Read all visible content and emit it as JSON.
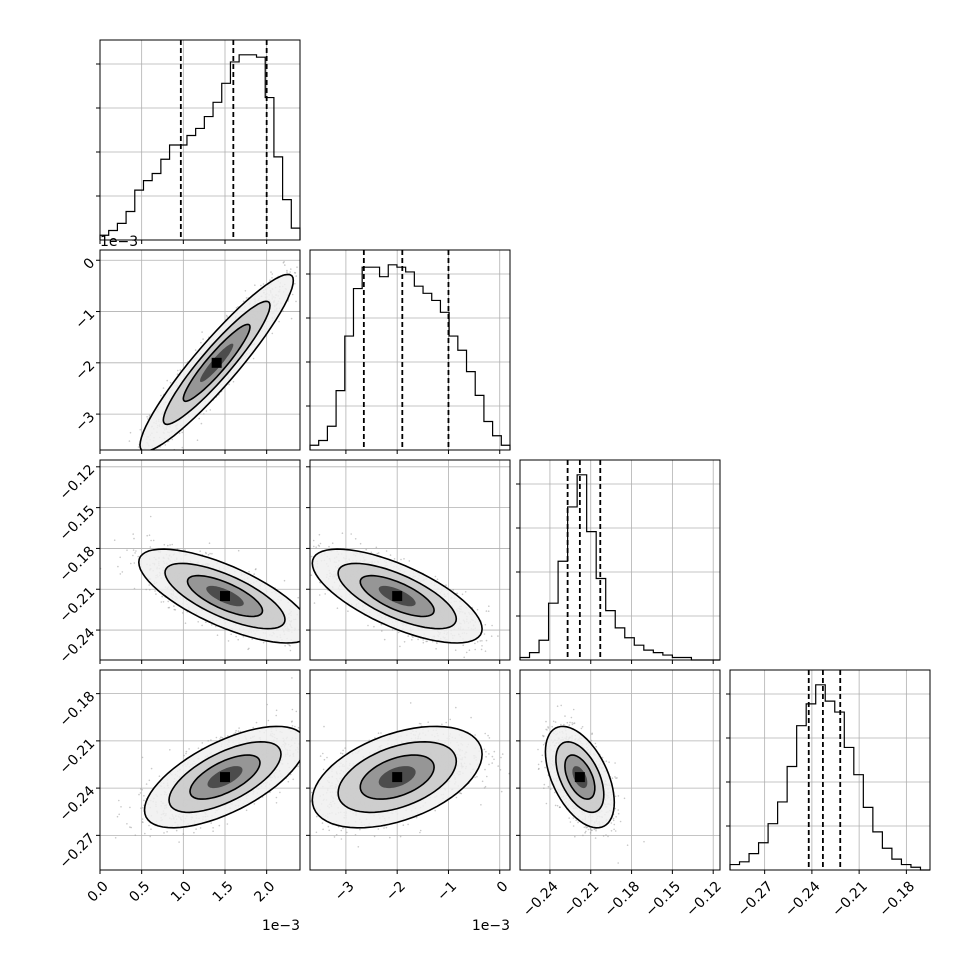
{
  "chart_data": {
    "type": "corner",
    "grid": true,
    "parameters": [
      {
        "ticks": [
          0.0,
          0.5,
          1.0,
          1.5,
          2.0
        ],
        "tick_labels": [
          "0.0",
          "0.5",
          "1.0",
          "1.5",
          "2.0"
        ],
        "offset_label": "1e−3",
        "range": [
          0.0,
          2.4
        ]
      },
      {
        "ticks": [
          -3,
          -2,
          -1,
          0
        ],
        "tick_labels": [
          "−3",
          "−2",
          "−1",
          "0"
        ],
        "offset_label": "1e−3",
        "range": [
          -3.7,
          0.2
        ]
      },
      {
        "ticks": [
          -0.24,
          -0.21,
          -0.18,
          -0.15,
          -0.12
        ],
        "tick_labels": [
          "−0.24",
          "−0.21",
          "−0.18",
          "−0.15",
          "−0.12"
        ],
        "offset_label": "",
        "range": [
          -0.262,
          -0.115
        ]
      },
      {
        "ticks": [
          -0.27,
          -0.24,
          -0.21,
          -0.18
        ],
        "tick_labels": [
          "−0.27",
          "−0.24",
          "−0.21",
          "−0.18"
        ],
        "offset_label": "",
        "range": [
          -0.292,
          -0.165
        ]
      }
    ],
    "histograms": [
      {
        "edges_range": [
          0.0,
          2.4
        ],
        "counts": [
          2,
          4,
          7,
          12,
          21,
          25,
          28,
          34,
          40,
          40,
          44,
          47,
          52,
          58,
          66,
          75,
          78,
          78,
          77,
          60,
          35,
          17,
          5
        ],
        "quantiles": [
          0.97,
          1.6,
          2.0
        ]
      },
      {
        "edges_range": [
          -3.7,
          0.2
        ],
        "counts": [
          2,
          4,
          10,
          25,
          48,
          68,
          77,
          77,
          73,
          78,
          77,
          75,
          69,
          66,
          63,
          58,
          48,
          42,
          33,
          23,
          12,
          6,
          2
        ],
        "quantiles": [
          -2.65,
          -1.9,
          -1.0
        ]
      },
      {
        "edges_range": [
          -0.262,
          -0.115
        ],
        "counts": [
          1,
          3,
          8,
          23,
          40,
          62,
          75,
          52,
          33,
          20,
          13,
          9,
          6,
          4,
          3,
          2,
          1,
          1,
          0,
          0,
          0
        ],
        "quantiles": [
          -0.227,
          -0.218,
          -0.203
        ]
      },
      {
        "edges_range": [
          -0.292,
          -0.165
        ],
        "counts": [
          2,
          3,
          6,
          10,
          17,
          25,
          38,
          53,
          61,
          68,
          62,
          58,
          45,
          35,
          23,
          14,
          8,
          4,
          2,
          1,
          0
        ],
        "quantiles": [
          -0.242,
          -0.233,
          -0.222
        ]
      }
    ],
    "pairs": [
      {
        "row": 1,
        "col": 0,
        "mean": [
          1.4,
          -2.0
        ],
        "sd": [
          0.4,
          0.75
        ],
        "rho": 0.93
      },
      {
        "row": 2,
        "col": 0,
        "mean": [
          1.5,
          -0.215
        ],
        "sd": [
          0.45,
          0.015
        ],
        "rho": -0.72
      },
      {
        "row": 2,
        "col": 1,
        "mean": [
          -2.0,
          -0.215
        ],
        "sd": [
          0.72,
          0.015
        ],
        "rho": -0.7
      },
      {
        "row": 3,
        "col": 0,
        "mean": [
          1.5,
          -0.233
        ],
        "sd": [
          0.42,
          0.014
        ],
        "rho": 0.65
      },
      {
        "row": 3,
        "col": 1,
        "mean": [
          -2.0,
          -0.233
        ],
        "sd": [
          0.72,
          0.014
        ],
        "rho": 0.45
      },
      {
        "row": 3,
        "col": 2,
        "mean": [
          -0.218,
          -0.233
        ],
        "sd": [
          0.011,
          0.014
        ],
        "rho": -0.5
      }
    ]
  }
}
